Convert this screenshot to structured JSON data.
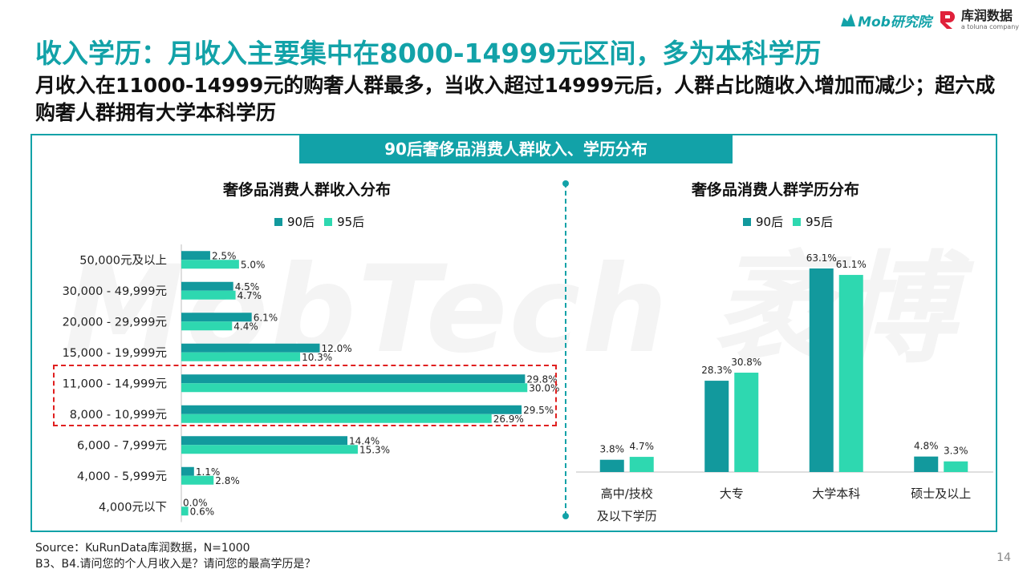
{
  "header": {
    "title": "收入学历：月收入主要集中在8000-14999元区间，多为本科学历",
    "subtitle": "月收入在11000-14999元的购奢人群最多，当收入超过14999元后，人群占比随收入增加而减少；超六成购奢人群拥有大学本科学历"
  },
  "logos": {
    "mob": "Mob研究院",
    "kurun_name": "库润数据",
    "kurun_sub": "a toluna company"
  },
  "banner": "90后奢侈品消费人群收入、学历分布",
  "watermark": "MobTech 袤博",
  "legend": {
    "s1": "90后",
    "s2": "95后"
  },
  "colors": {
    "s1": "#12999d",
    "s2": "#2ed8b0",
    "accent": "#12a2a8",
    "highlight": "#e02020"
  },
  "chart_data": [
    {
      "type": "bar",
      "orientation": "horizontal",
      "title": "奢侈品消费人群收入分布",
      "categories": [
        "50,000元及以上",
        "30,000 - 49,999元",
        "20,000 - 29,999元",
        "15,000 - 19,999元",
        "11,000 - 14,999元",
        "8,000 - 10,999元",
        "6,000 - 7,999元",
        "4,000 - 5,999元",
        "4,000元以下"
      ],
      "series": [
        {
          "name": "90后",
          "values": [
            2.5,
            4.5,
            6.1,
            12.0,
            29.8,
            29.5,
            14.4,
            1.1,
            0.0
          ],
          "labels": [
            "2.5%",
            "4.5%",
            "6.1%",
            "12.0%",
            "29.8%",
            "29.5%",
            "14.4%",
            "1.1%",
            "0.0%"
          ]
        },
        {
          "name": "95后",
          "values": [
            5.0,
            4.7,
            4.4,
            10.3,
            30.0,
            26.9,
            15.3,
            2.8,
            0.6
          ],
          "labels": [
            "5.0%",
            "4.7%",
            "4.4%",
            "10.3%",
            "30.0%",
            "26.9%",
            "15.3%",
            "2.8%",
            "0.6%"
          ]
        }
      ],
      "xlim": [
        0,
        32
      ],
      "highlighted_categories": [
        "11,000 - 14,999元",
        "8,000 - 10,999元"
      ],
      "legend_position": "top"
    },
    {
      "type": "bar",
      "orientation": "vertical",
      "title": "奢侈品消费人群学历分布",
      "categories": [
        "高中/技校及以下学历",
        "大专",
        "大学本科",
        "硕士及以上"
      ],
      "category_lines": [
        [
          "高中/技校",
          "及以下学历"
        ],
        [
          "大专"
        ],
        [
          "大学本科"
        ],
        [
          "硕士及以上"
        ]
      ],
      "series": [
        {
          "name": "90后",
          "values": [
            3.8,
            28.3,
            63.1,
            4.8
          ],
          "labels": [
            "3.8%",
            "28.3%",
            "63.1%",
            "4.8%"
          ]
        },
        {
          "name": "95后",
          "values": [
            4.7,
            30.8,
            61.1,
            3.3
          ],
          "labels": [
            "4.7%",
            "30.8%",
            "61.1%",
            "3.3%"
          ]
        }
      ],
      "ylim": [
        0,
        63.1
      ],
      "legend_position": "top"
    }
  ],
  "footer": {
    "source": "Source：KuRunData库润数据，N=1000",
    "question": "B3、B4.请问您的个人月收入是？请问您的最高学历是？",
    "page": "14"
  }
}
